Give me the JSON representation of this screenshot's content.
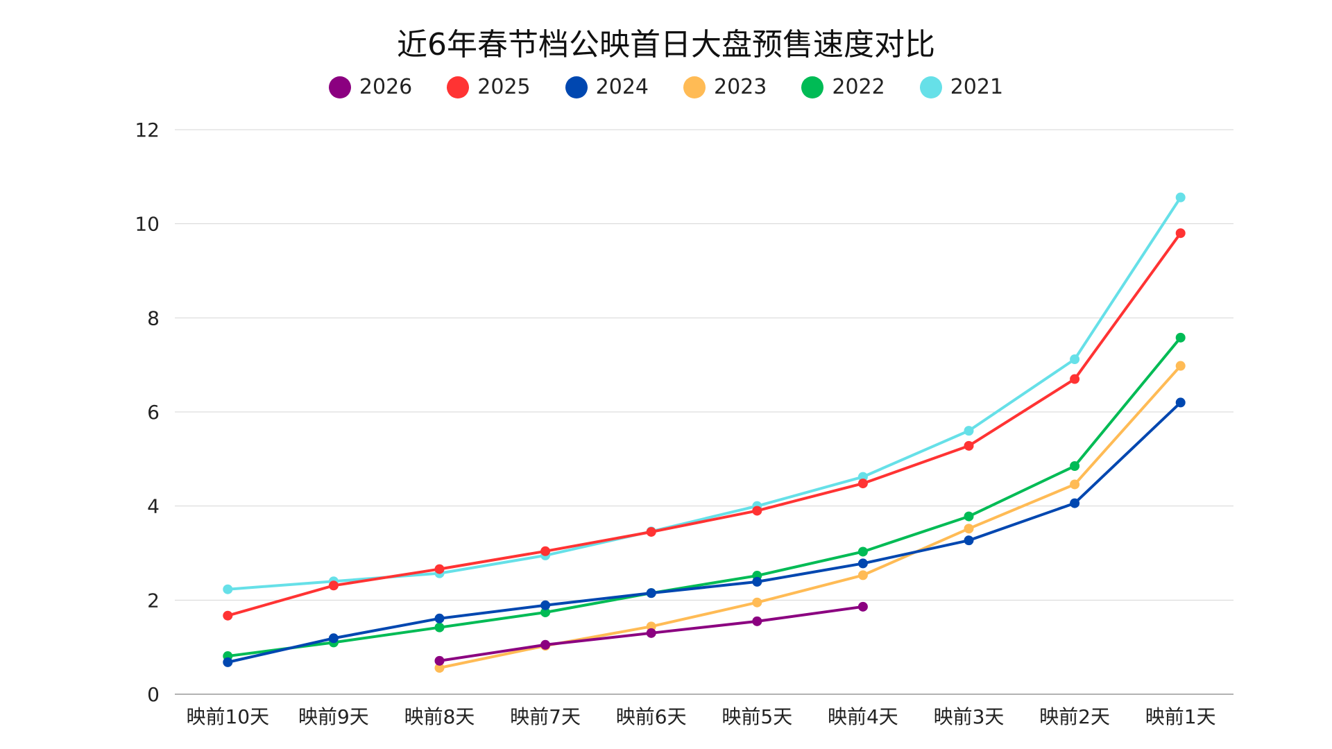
{
  "chart_data": {
    "type": "line",
    "title": "近6年春节档公映首日大盘预售速度对比",
    "xlabel": "",
    "ylabel": "",
    "categories": [
      "映前10天",
      "映前9天",
      "映前8天",
      "映前7天",
      "映前6天",
      "映前5天",
      "映前4天",
      "映前3天",
      "映前2天",
      "映前1天"
    ],
    "ylim": [
      0,
      12
    ],
    "yticks": [
      "0",
      "2",
      "4",
      "6",
      "8",
      "10",
      "12"
    ],
    "grid": true,
    "legend_position": "top",
    "series": [
      {
        "name": "2026",
        "color": "#8B0080",
        "values": [
          null,
          null,
          0.71,
          1.05,
          1.3,
          1.55,
          1.86,
          null,
          null,
          null
        ]
      },
      {
        "name": "2025",
        "color": "#FF3333",
        "values": [
          1.67,
          2.31,
          2.66,
          3.04,
          3.45,
          3.9,
          4.48,
          5.28,
          6.7,
          9.8
        ]
      },
      {
        "name": "2024",
        "color": "#0047B0",
        "values": [
          0.68,
          1.19,
          1.61,
          1.89,
          2.15,
          2.39,
          2.78,
          3.27,
          4.06,
          6.2
        ]
      },
      {
        "name": "2023",
        "color": "#FFBB55",
        "values": [
          null,
          null,
          0.56,
          1.03,
          1.44,
          1.95,
          2.53,
          3.52,
          4.46,
          6.98
        ]
      },
      {
        "name": "2022",
        "color": "#00BB55",
        "values": [
          0.81,
          1.1,
          1.42,
          1.74,
          2.15,
          2.52,
          3.03,
          3.78,
          4.85,
          7.58
        ]
      },
      {
        "name": "2021",
        "color": "#66E0E8",
        "values": [
          2.23,
          2.4,
          2.57,
          2.95,
          3.46,
          4.0,
          4.62,
          5.6,
          7.12,
          10.56
        ]
      }
    ]
  }
}
